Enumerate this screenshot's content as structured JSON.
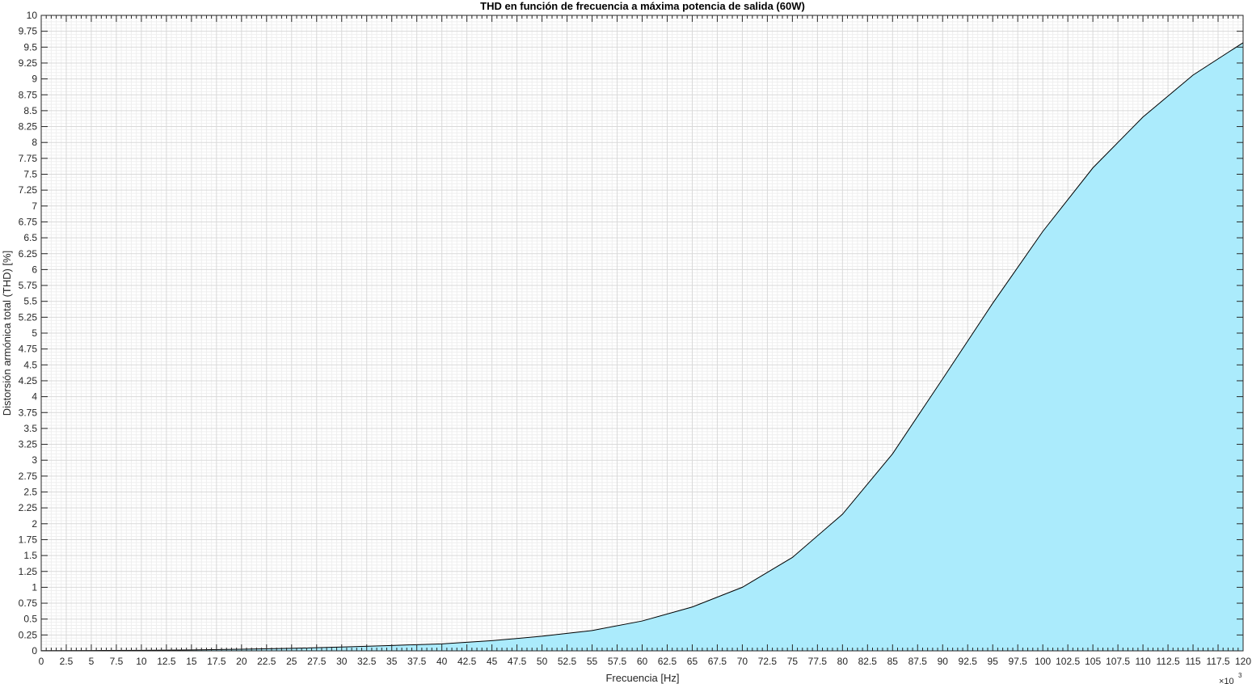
{
  "chart_data": {
    "type": "area",
    "title": "THD en función de frecuencia a máxima potencia de salida (60W)",
    "xlabel": "Frecuencia [Hz]",
    "ylabel": "Distorsión armónica total (THD) [%]",
    "x_exponent_base": "×10",
    "x_exponent_power": "3",
    "xlim": [
      0,
      120
    ],
    "ylim": [
      0,
      10
    ],
    "x_ticks": [
      "0",
      "2.5",
      "5",
      "7.5",
      "10",
      "12.5",
      "15",
      "17.5",
      "20",
      "22.5",
      "25",
      "27.5",
      "30",
      "32.5",
      "35",
      "37.5",
      "40",
      "42.5",
      "45",
      "47.5",
      "50",
      "52.5",
      "55",
      "57.5",
      "60",
      "62.5",
      "65",
      "67.5",
      "70",
      "72.5",
      "75",
      "77.5",
      "80",
      "82.5",
      "85",
      "87.5",
      "90",
      "92.5",
      "95",
      "97.5",
      "100",
      "102.5",
      "105",
      "107.5",
      "110",
      "112.5",
      "115",
      "117.5",
      "120"
    ],
    "y_ticks": [
      "0",
      "0.25",
      "0.5",
      "0.75",
      "1",
      "1.25",
      "1.5",
      "1.75",
      "2",
      "2.25",
      "2.5",
      "2.75",
      "3",
      "3.25",
      "3.5",
      "3.75",
      "4",
      "4.25",
      "4.5",
      "4.75",
      "5",
      "5.25",
      "5.5",
      "5.75",
      "6",
      "6.25",
      "6.5",
      "6.75",
      "7",
      "7.25",
      "7.5",
      "7.75",
      "8",
      "8.25",
      "8.5",
      "8.75",
      "9",
      "9.25",
      "9.5",
      "9.75",
      "10"
    ],
    "grid": true,
    "minor_grid": true,
    "fill_color": "#abebfc",
    "line_color": "#000000",
    "x": [
      0,
      5,
      10,
      15,
      20,
      25,
      30,
      35,
      40,
      45,
      50,
      55,
      60,
      65,
      70,
      75,
      80,
      85,
      90,
      95,
      100,
      105,
      110,
      115,
      120
    ],
    "values": [
      0.003,
      0.005,
      0.008,
      0.015,
      0.025,
      0.04,
      0.06,
      0.085,
      0.11,
      0.16,
      0.23,
      0.32,
      0.47,
      0.69,
      1.0,
      1.47,
      2.15,
      3.1,
      4.28,
      5.47,
      6.6,
      7.6,
      8.4,
      9.06,
      9.57
    ]
  }
}
